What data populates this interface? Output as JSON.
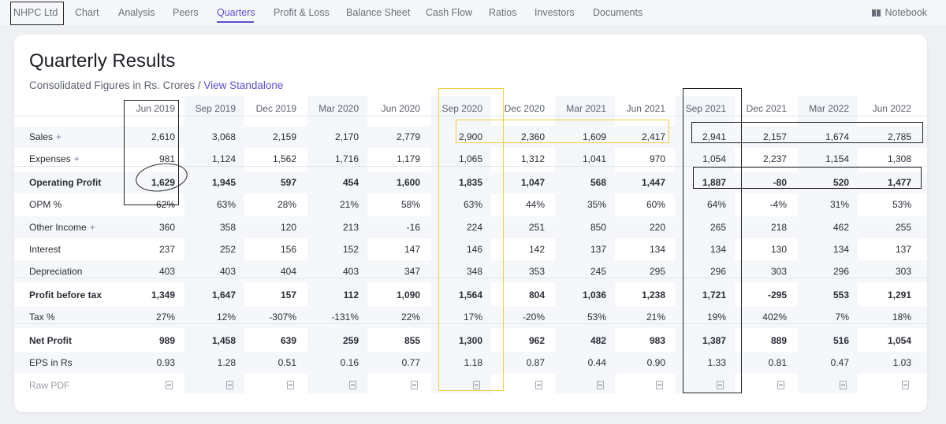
{
  "nav": {
    "company": "NHPC Ltd",
    "items": [
      "Chart",
      "Analysis",
      "Peers",
      "Quarters",
      "Profit & Loss",
      "Balance Sheet",
      "Cash Flow",
      "Ratios",
      "Investors",
      "Documents"
    ],
    "active": "Quarters",
    "notebook": "Notebook"
  },
  "section": {
    "title": "Quarterly Results",
    "subtitle": "Consolidated Figures in Rs. Crores /",
    "link": "View Standalone"
  },
  "table": {
    "columns": [
      "Jun 2019",
      "Sep 2019",
      "Dec 2019",
      "Mar 2020",
      "Jun 2020",
      "Sep 2020",
      "Dec 2020",
      "Mar 2021",
      "Jun 2021",
      "Sep 2021",
      "Dec 2021",
      "Mar 2022",
      "Jun 2022"
    ],
    "rows": [
      {
        "label": "Sales",
        "plus": "+",
        "values": [
          "2,610",
          "3,068",
          "2,159",
          "2,170",
          "2,779",
          "2,900",
          "2,360",
          "1,609",
          "2,417",
          "2,941",
          "2,157",
          "1,674",
          "2,785"
        ]
      },
      {
        "label": "Expenses",
        "plus": "+",
        "values": [
          "981",
          "1,124",
          "1,562",
          "1,716",
          "1,179",
          "1,065",
          "1,312",
          "1,041",
          "970",
          "1,054",
          "2,237",
          "1,154",
          "1,308"
        ]
      },
      {
        "label": "Operating Profit",
        "values": [
          "1,629",
          "1,945",
          "597",
          "454",
          "1,600",
          "1,835",
          "1,047",
          "568",
          "1,447",
          "1,887",
          "-80",
          "520",
          "1,477"
        ]
      },
      {
        "label": "OPM %",
        "values": [
          "62%",
          "63%",
          "28%",
          "21%",
          "58%",
          "63%",
          "44%",
          "35%",
          "60%",
          "64%",
          "-4%",
          "31%",
          "53%"
        ]
      },
      {
        "label": "Other Income",
        "plus": "+",
        "values": [
          "360",
          "358",
          "120",
          "213",
          "-16",
          "224",
          "251",
          "850",
          "220",
          "265",
          "218",
          "462",
          "255"
        ]
      },
      {
        "label": "Interest",
        "values": [
          "237",
          "252",
          "156",
          "152",
          "147",
          "146",
          "142",
          "137",
          "134",
          "134",
          "130",
          "134",
          "137"
        ]
      },
      {
        "label": "Depreciation",
        "values": [
          "403",
          "403",
          "404",
          "403",
          "347",
          "348",
          "353",
          "245",
          "295",
          "296",
          "303",
          "296",
          "303"
        ]
      },
      {
        "label": "Profit before tax",
        "values": [
          "1,349",
          "1,647",
          "157",
          "112",
          "1,090",
          "1,564",
          "804",
          "1,036",
          "1,238",
          "1,721",
          "-295",
          "553",
          "1,291"
        ]
      },
      {
        "label": "Tax %",
        "values": [
          "27%",
          "12%",
          "-307%",
          "-131%",
          "22%",
          "17%",
          "-20%",
          "53%",
          "21%",
          "19%",
          "402%",
          "7%",
          "18%"
        ]
      },
      {
        "label": "Net Profit",
        "values": [
          "989",
          "1,458",
          "639",
          "259",
          "855",
          "1,300",
          "962",
          "482",
          "983",
          "1,387",
          "889",
          "516",
          "1,054"
        ]
      },
      {
        "label": "EPS in Rs",
        "values": [
          "0.93",
          "1.28",
          "0.51",
          "0.16",
          "0.77",
          "1.18",
          "0.87",
          "0.44",
          "0.90",
          "1.33",
          "0.81",
          "0.47",
          "1.03"
        ]
      },
      {
        "label": "Raw PDF",
        "values": []
      }
    ]
  },
  "colors": {
    "accent": "#5a4fcf",
    "annotation_black": "#222222",
    "annotation_yellow": "#f2cf3b"
  }
}
